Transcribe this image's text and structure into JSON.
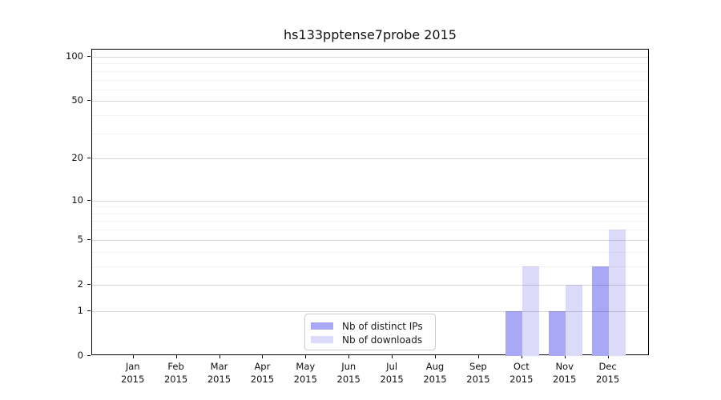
{
  "chart_data": {
    "type": "bar",
    "title": "hs133pptense7probe 2015",
    "categories": [
      "Jan",
      "Feb",
      "Mar",
      "Apr",
      "May",
      "Jun",
      "Jul",
      "Aug",
      "Sep",
      "Oct",
      "Nov",
      "Dec"
    ],
    "x_year": "2015",
    "series": [
      {
        "name": "Nb of distinct IPs",
        "color": "#a8a8f7",
        "values": [
          0,
          0,
          0,
          0,
          0,
          0,
          0,
          0,
          0,
          1,
          1,
          3
        ]
      },
      {
        "name": "Nb of downloads",
        "color": "#dbdbf9",
        "values": [
          0,
          0,
          0,
          0,
          0,
          0,
          0,
          0,
          0,
          3,
          2,
          6
        ]
      }
    ],
    "xlabel": "",
    "ylabel": "",
    "y_scale": "log10(value+1)",
    "y_ticks": [
      0,
      1,
      2,
      5,
      10,
      20,
      50,
      100
    ],
    "y_minor_ticks": [
      3,
      4,
      6,
      7,
      8,
      9,
      30,
      40,
      60,
      70,
      80,
      90
    ],
    "ylim": [
      0,
      112
    ],
    "grid": true,
    "legend": {
      "position": "lower center",
      "border_color": "#cccccc"
    }
  }
}
